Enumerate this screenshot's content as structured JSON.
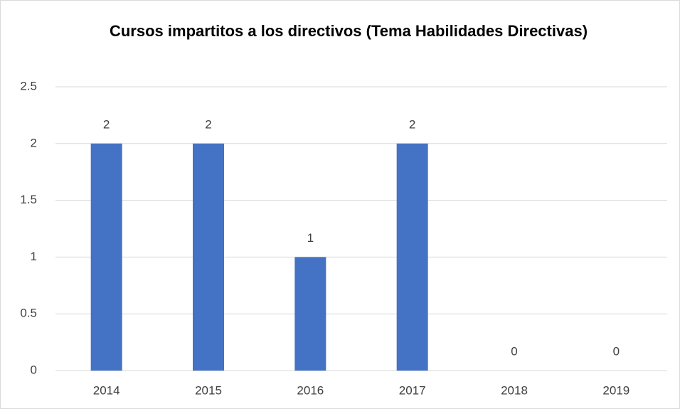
{
  "chart_data": {
    "type": "bar",
    "title": "Cursos impartitos a los directivos (Tema Habilidades Directivas)",
    "categories": [
      "2014",
      "2015",
      "2016",
      "2017",
      "2018",
      "2019"
    ],
    "values": [
      2,
      2,
      1,
      2,
      0,
      0
    ],
    "color": "#4472c4",
    "ylim": [
      0,
      2.5
    ],
    "yticks": [
      0,
      0.5,
      1,
      1.5,
      2,
      2.5
    ],
    "grid": true
  }
}
